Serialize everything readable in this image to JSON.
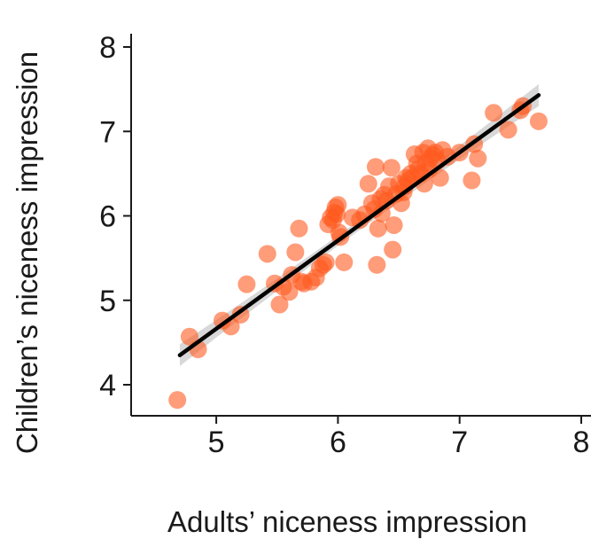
{
  "chart_data": {
    "type": "scatter",
    "xlabel": "Adults’ niceness impression",
    "ylabel": "Children’s niceness impression",
    "xlim": [
      4.3,
      8.0
    ],
    "ylim": [
      3.6,
      8.2
    ],
    "xticks": [
      5,
      6,
      7,
      8
    ],
    "yticks": [
      4,
      5,
      6,
      7,
      8
    ],
    "grid": false,
    "point_color": "#ff5a1f",
    "point_opacity": 0.6,
    "line_color": "#000000",
    "band_color": "#c8c8c8",
    "fit_line": {
      "x": [
        4.7,
        7.65
      ],
      "y": [
        4.35,
        7.43
      ]
    },
    "series": [
      {
        "points": [
          [
            4.68,
            3.82
          ],
          [
            4.78,
            4.57
          ],
          [
            4.85,
            4.42
          ],
          [
            5.05,
            4.76
          ],
          [
            5.12,
            4.69
          ],
          [
            5.2,
            4.83
          ],
          [
            5.25,
            5.19
          ],
          [
            5.42,
            5.55
          ],
          [
            5.48,
            5.2
          ],
          [
            5.52,
            4.95
          ],
          [
            5.55,
            5.16
          ],
          [
            5.6,
            5.1
          ],
          [
            5.62,
            5.3
          ],
          [
            5.65,
            5.57
          ],
          [
            5.68,
            5.85
          ],
          [
            5.7,
            5.22
          ],
          [
            5.72,
            5.2
          ],
          [
            5.78,
            5.22
          ],
          [
            5.82,
            5.27
          ],
          [
            5.85,
            5.38
          ],
          [
            5.88,
            5.42
          ],
          [
            5.9,
            5.45
          ],
          [
            5.92,
            5.9
          ],
          [
            5.94,
            5.98
          ],
          [
            5.96,
            5.95
          ],
          [
            5.97,
            6.04
          ],
          [
            5.98,
            6.1
          ],
          [
            5.99,
            6.02
          ],
          [
            6.0,
            6.13
          ],
          [
            6.01,
            5.8
          ],
          [
            6.02,
            5.75
          ],
          [
            6.05,
            5.45
          ],
          [
            6.12,
            5.98
          ],
          [
            6.18,
            5.95
          ],
          [
            6.22,
            6.02
          ],
          [
            6.25,
            6.38
          ],
          [
            6.28,
            6.15
          ],
          [
            6.3,
            6.08
          ],
          [
            6.31,
            6.58
          ],
          [
            6.32,
            5.42
          ],
          [
            6.33,
            5.85
          ],
          [
            6.35,
            6.2
          ],
          [
            6.36,
            6.03
          ],
          [
            6.38,
            6.25
          ],
          [
            6.4,
            6.18
          ],
          [
            6.42,
            6.35
          ],
          [
            6.44,
            6.57
          ],
          [
            6.45,
            5.6
          ],
          [
            6.46,
            5.89
          ],
          [
            6.48,
            6.26
          ],
          [
            6.5,
            6.38
          ],
          [
            6.52,
            6.15
          ],
          [
            6.54,
            6.28
          ],
          [
            6.55,
            6.35
          ],
          [
            6.56,
            6.45
          ],
          [
            6.58,
            6.42
          ],
          [
            6.6,
            6.5
          ],
          [
            6.62,
            6.46
          ],
          [
            6.63,
            6.73
          ],
          [
            6.65,
            6.62
          ],
          [
            6.66,
            6.55
          ],
          [
            6.68,
            6.5
          ],
          [
            6.7,
            6.75
          ],
          [
            6.71,
            6.38
          ],
          [
            6.72,
            6.62
          ],
          [
            6.74,
            6.8
          ],
          [
            6.75,
            6.55
          ],
          [
            6.76,
            6.68
          ],
          [
            6.78,
            6.72
          ],
          [
            6.8,
            6.75
          ],
          [
            6.82,
            6.65
          ],
          [
            6.84,
            6.45
          ],
          [
            6.86,
            6.78
          ],
          [
            6.9,
            6.7
          ],
          [
            7.0,
            6.75
          ],
          [
            7.1,
            6.42
          ],
          [
            7.12,
            6.85
          ],
          [
            7.15,
            6.68
          ],
          [
            7.28,
            7.22
          ],
          [
            7.4,
            7.02
          ],
          [
            7.5,
            7.25
          ],
          [
            7.52,
            7.3
          ],
          [
            7.65,
            7.12
          ]
        ]
      }
    ]
  }
}
